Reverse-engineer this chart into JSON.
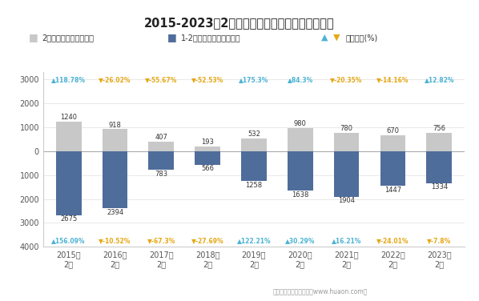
{
  "title": "2015-2023年2月郑州商品交易所白糖期货成交量",
  "categories": [
    "2015年\n2月",
    "2016年\n2月",
    "2017年\n2月",
    "2018年\n2月",
    "2019年\n2月",
    "2020年\n2月",
    "2021年\n2月",
    "2022年\n2月",
    "2023年\n2月"
  ],
  "feb_volume": [
    1240,
    918,
    407,
    193,
    532,
    980,
    780,
    670,
    756
  ],
  "jan_feb_volume": [
    2675,
    2394,
    783,
    566,
    1258,
    1638,
    1904,
    1447,
    1334
  ],
  "top_growth": [
    "▲118.78%",
    "▼-26.02%",
    "▼-55.67%",
    "▼-52.53%",
    "▲175.3%",
    "▲84.3%",
    "▼-20.35%",
    "▼-14.16%",
    "▲12.82%"
  ],
  "bot_growth": [
    "▲156.09%",
    "▼-10.52%",
    "▼-67.3%",
    "▼-27.69%",
    "▲122.21%",
    "▲30.29%",
    "▲16.21%",
    "▼-24.01%",
    "▼-7.8%"
  ],
  "top_growth_up": [
    true,
    false,
    false,
    false,
    true,
    true,
    false,
    false,
    true
  ],
  "bot_growth_up": [
    true,
    false,
    false,
    false,
    true,
    true,
    true,
    false,
    false
  ],
  "bar_gray": "#c8c8c8",
  "bar_blue": "#4f6d9b",
  "color_up": "#4db3d4",
  "color_down": "#e6a817",
  "background": "#ffffff",
  "legend_label1": "2月期货成交量（万手）",
  "legend_label2": "1-2月期货成交量（万手）",
  "legend_label3": "同比增长(%)",
  "footer": "制图：华经产业研究院（www.huaon.com）"
}
